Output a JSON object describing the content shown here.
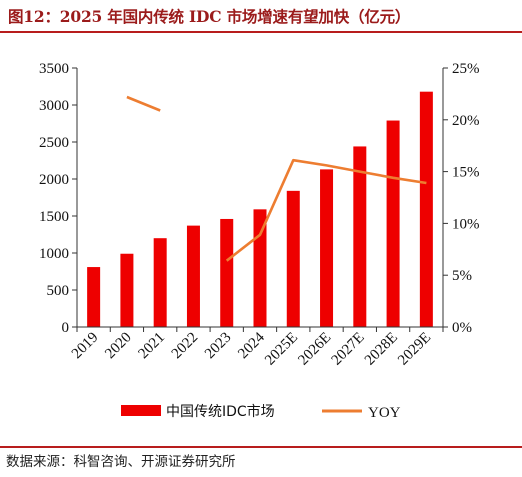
{
  "title": "图12：2025 年国内传统 IDC 市场增速有望加快（亿元）",
  "source": "数据来源：科智咨询、开源证券研究所",
  "colors": {
    "bar": "#ee0000",
    "line": "#ed7d31",
    "accent": "#b81d1d"
  },
  "chart_data": {
    "type": "bar",
    "categories": [
      "2019",
      "2020",
      "2021",
      "2022",
      "2023",
      "2024",
      "2025E",
      "2026E",
      "2027E",
      "2028E",
      "2029E"
    ],
    "series": [
      {
        "name": "中国传统IDC市场",
        "type": "bar",
        "axis": "left",
        "values": [
          810,
          990,
          1200,
          1370,
          1460,
          1590,
          1840,
          2130,
          2440,
          2790,
          3180
        ]
      },
      {
        "name": "YOY",
        "type": "line",
        "axis": "right",
        "values": [
          null,
          22.2,
          20.9,
          null,
          6.4,
          8.9,
          16.1,
          15.6,
          15.0,
          14.4,
          13.9
        ]
      }
    ],
    "y_left": {
      "min": 0,
      "max": 3500,
      "ticks": [
        "0",
        "500",
        "1000",
        "1500",
        "2000",
        "2500",
        "3000",
        "3500"
      ]
    },
    "y_right": {
      "min": 0,
      "max": 25,
      "ticks": [
        "0%",
        "5%",
        "10%",
        "15%",
        "20%",
        "25%"
      ]
    },
    "legend_position": "bottom",
    "grid": false
  }
}
